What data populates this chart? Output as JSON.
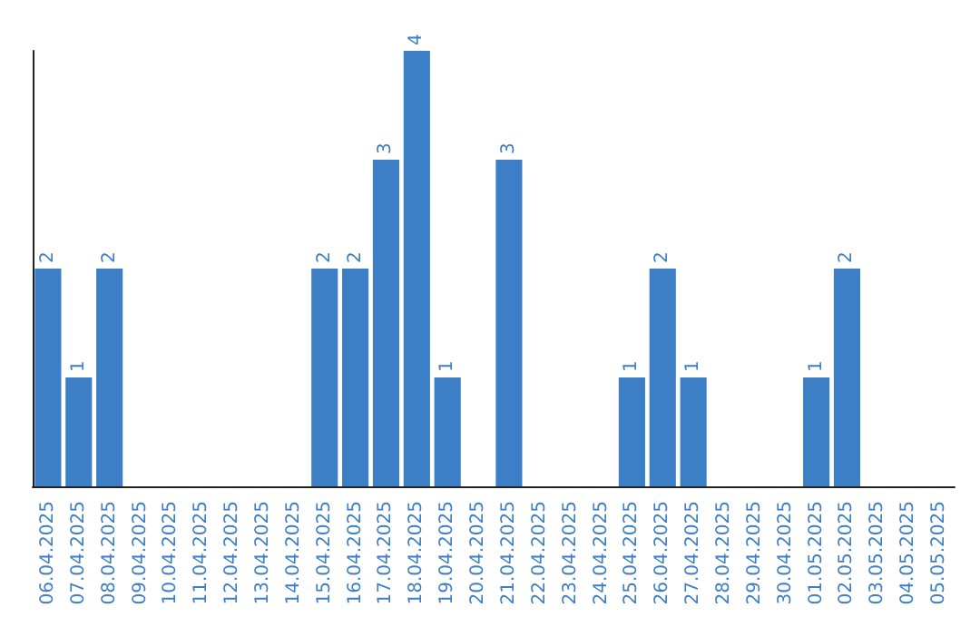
{
  "chart_data": {
    "type": "bar",
    "categories": [
      "06.04.2025",
      "07.04.2025",
      "08.04.2025",
      "09.04.2025",
      "10.04.2025",
      "11.04.2025",
      "12.04.2025",
      "13.04.2025",
      "14.04.2025",
      "15.04.2025",
      "16.04.2025",
      "17.04.2025",
      "18.04.2025",
      "19.04.2025",
      "20.04.2025",
      "21.04.2025",
      "22.04.2025",
      "23.04.2025",
      "24.04.2025",
      "25.04.2025",
      "26.04.2025",
      "27.04.2025",
      "28.04.2025",
      "29.04.2025",
      "30.04.2025",
      "01.05.2025",
      "02.05.2025",
      "03.05.2025",
      "04.05.2025",
      "05.05.2025"
    ],
    "values": [
      2,
      1,
      2,
      0,
      0,
      0,
      0,
      0,
      0,
      2,
      2,
      3,
      4,
      1,
      0,
      3,
      0,
      0,
      0,
      1,
      2,
      1,
      0,
      0,
      0,
      1,
      2,
      0,
      0,
      0
    ],
    "value_labels": [
      "2",
      "1",
      "2",
      null,
      null,
      null,
      null,
      null,
      null,
      "2",
      "2",
      "3",
      "4",
      "1",
      null,
      "3",
      null,
      null,
      null,
      "1",
      "2",
      "1",
      null,
      null,
      null,
      "1",
      "2",
      null,
      null,
      null
    ],
    "color": "#3d7fc6",
    "grid": false,
    "tick_labels": "x"
  }
}
